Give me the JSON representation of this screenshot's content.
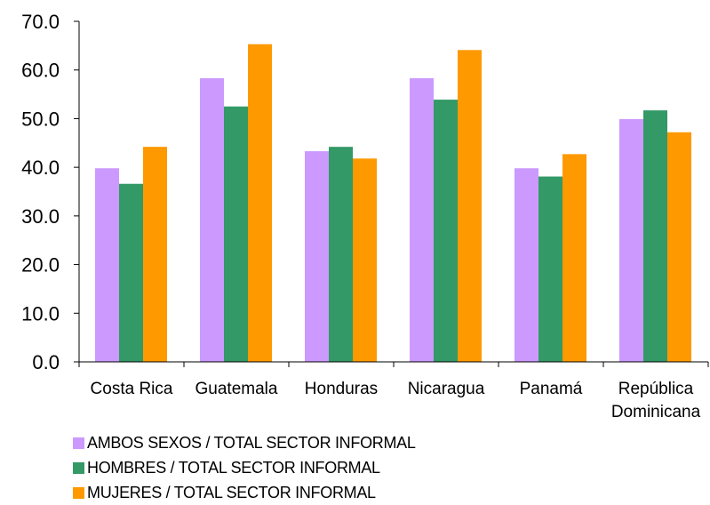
{
  "chart_data": {
    "type": "bar",
    "categories": [
      [
        "Costa Rica"
      ],
      [
        "Guatemala"
      ],
      [
        "Honduras"
      ],
      [
        "Nicaragua"
      ],
      [
        "Panamá"
      ],
      [
        "República",
        "Dominicana"
      ]
    ],
    "ylim": [
      0,
      70
    ],
    "yticks": [
      "0.0",
      "10.0",
      "20.0",
      "30.0",
      "40.0",
      "50.0",
      "60.0",
      "70.0"
    ],
    "grid": false,
    "legend_position": "bottom-left",
    "series": [
      {
        "name": "AMBOS SEXOS / TOTAL SECTOR INFORMAL",
        "color": "#cc99ff",
        "values": [
          39.8,
          58.3,
          43.3,
          58.3,
          39.8,
          49.9
        ]
      },
      {
        "name": "HOMBRES / TOTAL SECTOR INFORMAL",
        "color": "#339966",
        "values": [
          36.6,
          52.5,
          44.2,
          53.9,
          38.1,
          51.7
        ]
      },
      {
        "name": "MUJERES / TOTAL SECTOR INFORMAL",
        "color": "#ff9900",
        "values": [
          44.2,
          65.3,
          41.8,
          64.1,
          42.7,
          47.2
        ]
      }
    ]
  }
}
